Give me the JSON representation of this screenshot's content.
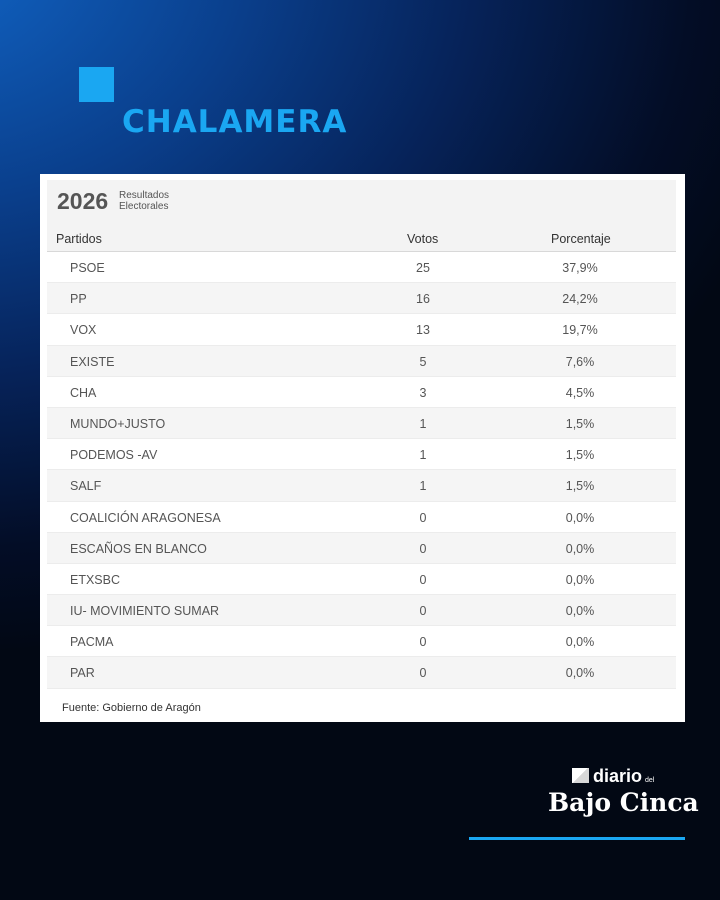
{
  "header": {
    "title": "CHALAMERA"
  },
  "card": {
    "year": "2026",
    "year_label": [
      "Resultados",
      "Electorales"
    ],
    "columns": {
      "party": "Partidos",
      "votes": "Votos",
      "percent": "Porcentaje"
    },
    "rows": [
      {
        "party": "PSOE",
        "votes": "25",
        "percent": "37,9%"
      },
      {
        "party": "PP",
        "votes": "16",
        "percent": "24,2%"
      },
      {
        "party": "VOX",
        "votes": "13",
        "percent": "19,7%"
      },
      {
        "party": "EXISTE",
        "votes": "5",
        "percent": "7,6%"
      },
      {
        "party": "CHA",
        "votes": "3",
        "percent": "4,5%"
      },
      {
        "party": "MUNDO+JUSTO",
        "votes": "1",
        "percent": "1,5%"
      },
      {
        "party": "PODEMOS -AV",
        "votes": "1",
        "percent": "1,5%"
      },
      {
        "party": "SALF",
        "votes": "1",
        "percent": "1,5%"
      },
      {
        "party": "COALICIÓN ARAGONESA",
        "votes": "0",
        "percent": "0,0%"
      },
      {
        "party": "ESCAÑOS EN BLANCO",
        "votes": "0",
        "percent": "0,0%"
      },
      {
        "party": "ETXSBC",
        "votes": "0",
        "percent": "0,0%"
      },
      {
        "party": "IU- MOVIMIENTO SUMAR",
        "votes": "0",
        "percent": "0,0%"
      },
      {
        "party": "PACMA",
        "votes": "0",
        "percent": "0,0%"
      },
      {
        "party": "PAR",
        "votes": "0",
        "percent": "0,0%"
      }
    ],
    "source": "Fuente: Gobierno de Aragón"
  },
  "logo": {
    "top": "diario",
    "small": "del",
    "main": "Bajo Cinca",
    "icon": "newspaper-fold-icon"
  },
  "colors": {
    "accent": "#1aa7f2",
    "background_dark": "#020814",
    "background_blue": "#1166c8"
  }
}
